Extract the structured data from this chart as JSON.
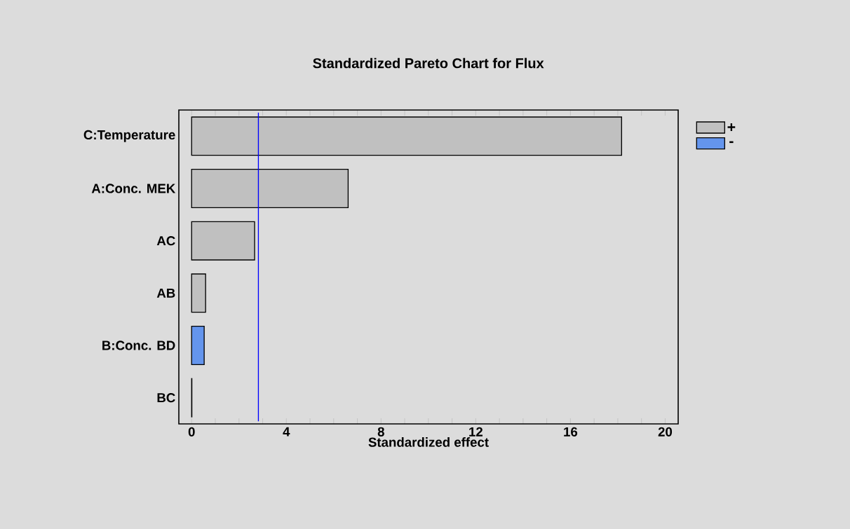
{
  "chart_data": {
    "type": "bar",
    "orientation": "horizontal",
    "title": "Standardized Pareto Chart for Flux",
    "xlabel": "Standardized effect",
    "categories": [
      "C:Temperature",
      "A:Conc. MEK",
      "AC",
      "AB",
      "B:Conc. BD",
      "BC"
    ],
    "series": [
      {
        "name": "+",
        "color": "#c0c0c0",
        "values": [
          18.16,
          6.61,
          2.66,
          0.59,
          null,
          0.01
        ]
      },
      {
        "name": "-",
        "color": "#6495ed",
        "values": [
          null,
          null,
          null,
          null,
          0.53,
          null
        ]
      }
    ],
    "xlim": [
      -0.54,
      20.55
    ],
    "xticks": [
      0,
      {
        "value": 1,
        "label": null
      },
      {
        "value": 2,
        "label": null
      },
      {
        "value": 3,
        "label": null
      },
      4,
      {
        "value": 5,
        "label": null
      },
      {
        "value": 6,
        "label": null
      },
      {
        "value": 7,
        "label": null
      },
      8,
      {
        "value": 9,
        "label": null
      },
      {
        "value": 10,
        "label": null
      },
      {
        "value": 11,
        "label": null
      },
      12,
      {
        "value": 13,
        "label": null
      },
      {
        "value": 14,
        "label": null
      },
      {
        "value": 15,
        "label": null
      },
      16,
      {
        "value": 17,
        "label": null
      },
      {
        "value": 18,
        "label": null
      },
      {
        "value": 19,
        "label": null
      },
      20
    ],
    "ref_lines": [
      {
        "axis": "x",
        "value": 2.82,
        "color": "#0000ff"
      }
    ],
    "legend": "right",
    "grid": false
  }
}
